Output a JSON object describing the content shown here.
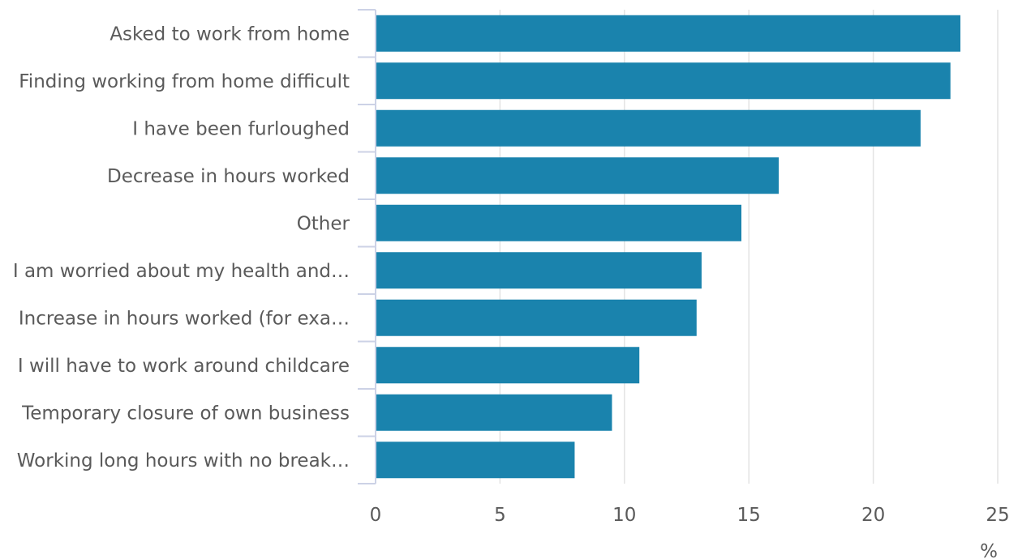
{
  "chart_data": {
    "type": "bar",
    "orientation": "horizontal",
    "categories": [
      "Asked to work from home",
      "Finding working from home difficult",
      "I have been furloughed",
      "Decrease in hours worked",
      "Other",
      "I am worried about my health and…",
      "Increase in hours worked (for exa…",
      "I will have to work around childcare",
      "Temporary closure of own business",
      "Working long hours with no break…"
    ],
    "values": [
      23.5,
      23.1,
      21.9,
      16.2,
      14.7,
      13.1,
      12.9,
      10.6,
      9.5,
      8.0
    ],
    "title": "",
    "xlabel": "%",
    "ylabel": "",
    "xlim": [
      0,
      25
    ],
    "xticks": [
      0,
      5,
      10,
      15,
      20,
      25
    ],
    "grid": "vertical",
    "legend": "none",
    "bar_color": "#1a83ad"
  }
}
